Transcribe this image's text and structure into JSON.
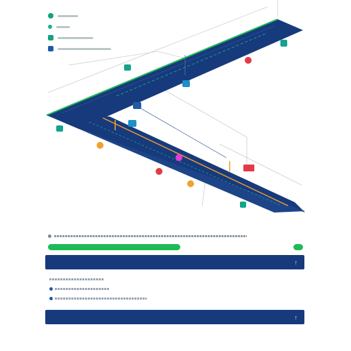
{
  "legend": {
    "items": [
      {
        "name": "route-station",
        "color": "#15a37c",
        "label": ""
      },
      {
        "name": "route-area",
        "color": "#14b29a",
        "label": ""
      },
      {
        "name": "route-zone",
        "color": "#16a37a",
        "label": ""
      },
      {
        "name": "route-info",
        "color": "#1f5aa6",
        "label": ""
      }
    ]
  },
  "map": {
    "road_color": "#173a7c",
    "edge_color": "#1dbb56",
    "accent_orange": "#f2a12e",
    "accent_red": "#e23b48",
    "accent_magenta": "#e63ad9",
    "accent_teal": "#14a38c"
  },
  "panel": {
    "title": "",
    "subtitle": "",
    "progress": 0.52,
    "sections": [
      {
        "label": "",
        "expanded": true,
        "items": [
          "",
          "",
          ""
        ]
      },
      {
        "label": "",
        "expanded": true,
        "items": []
      }
    ]
  }
}
